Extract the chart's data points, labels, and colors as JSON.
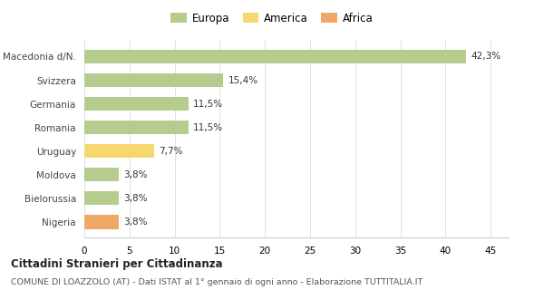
{
  "categories": [
    "Macedonia d/N.",
    "Svizzera",
    "Germania",
    "Romania",
    "Uruguay",
    "Moldova",
    "Bielorussia",
    "Nigeria"
  ],
  "values": [
    42.3,
    15.4,
    11.5,
    11.5,
    7.7,
    3.8,
    3.8,
    3.8
  ],
  "labels": [
    "42,3%",
    "15,4%",
    "11,5%",
    "11,5%",
    "7,7%",
    "3,8%",
    "3,8%",
    "3,8%"
  ],
  "colors": [
    "#b5cc8e",
    "#b5cc8e",
    "#b5cc8e",
    "#b5cc8e",
    "#f5d76e",
    "#b5cc8e",
    "#b5cc8e",
    "#f0a868"
  ],
  "legend": [
    {
      "label": "Europa",
      "color": "#b5cc8e"
    },
    {
      "label": "America",
      "color": "#f5d76e"
    },
    {
      "label": "Africa",
      "color": "#f0a868"
    }
  ],
  "xlim": [
    0,
    47
  ],
  "xticks": [
    0,
    5,
    10,
    15,
    20,
    25,
    30,
    35,
    40,
    45
  ],
  "title": "Cittadini Stranieri per Cittadinanza",
  "subtitle": "COMUNE DI LOAZZOLO (AT) - Dati ISTAT al 1° gennaio di ogni anno - Elaborazione TUTTITALIA.IT",
  "background_color": "#ffffff",
  "grid_color": "#e0e0e0"
}
